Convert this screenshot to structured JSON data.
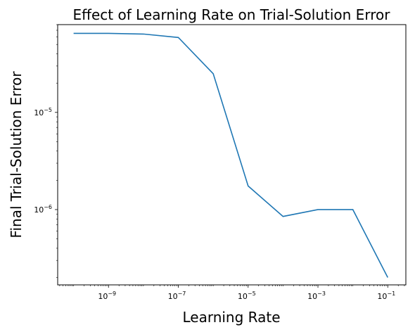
{
  "chart_data": {
    "type": "line",
    "title": "Effect of Learning Rate on Trial-Solution Error",
    "xlabel": "Learning Rate",
    "ylabel": "Final Trial-Solution Error",
    "xscale": "log",
    "yscale": "log",
    "grid": false,
    "legend": "none",
    "xlim": [
      3.5e-11,
      0.33
    ],
    "ylim": [
      1.68e-07,
      8e-05
    ],
    "x_ticks": [
      {
        "value": 1e-09,
        "base": "10",
        "exp": "−9"
      },
      {
        "value": 1e-07,
        "base": "10",
        "exp": "−7"
      },
      {
        "value": 1e-05,
        "base": "10",
        "exp": "−5"
      },
      {
        "value": 0.001,
        "base": "10",
        "exp": "−3"
      },
      {
        "value": 0.1,
        "base": "10",
        "exp": "−1"
      }
    ],
    "y_ticks": [
      {
        "value": 1e-05,
        "base": "10",
        "exp": "−5"
      },
      {
        "value": 1e-06,
        "base": "10",
        "exp": "−6"
      }
    ],
    "series": [
      {
        "color": "#1f77b4",
        "x": [
          1e-10,
          1e-09,
          1e-08,
          1e-07,
          1e-06,
          1e-05,
          0.0001,
          0.001,
          0.01,
          0.1
        ],
        "y": [
          6.5e-05,
          6.5e-05,
          6.4e-05,
          5.9e-05,
          2.5e-05,
          1.75e-06,
          8.5e-07,
          1e-06,
          1e-06,
          2e-07
        ]
      }
    ]
  }
}
